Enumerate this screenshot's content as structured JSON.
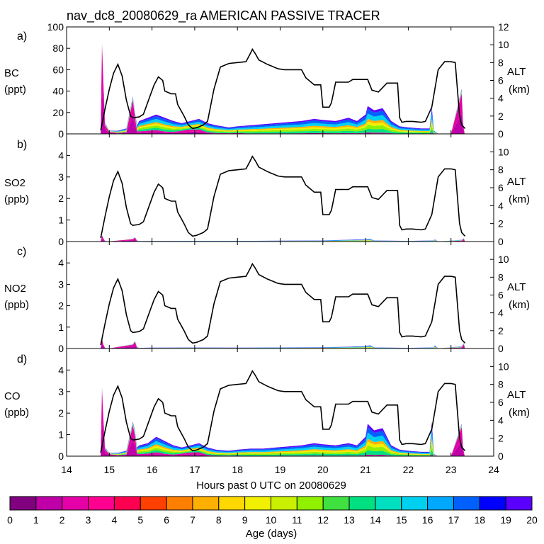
{
  "title": "nav_dc8_20080629_ra AMERICAN PASSIVE TRACER",
  "xlabel": "Hours past 0 UTC on 20080629",
  "xlim": [
    14,
    24
  ],
  "xticks": [
    "14",
    "15",
    "16",
    "17",
    "18",
    "19",
    "20",
    "21",
    "22",
    "23",
    "24"
  ],
  "colorbar": {
    "label": "Age (days)",
    "ticks": [
      "0",
      "1",
      "2",
      "3",
      "4",
      "5",
      "6",
      "7",
      "8",
      "9",
      "10",
      "11",
      "12",
      "13",
      "14",
      "15",
      "16",
      "17",
      "18",
      "19",
      "20"
    ],
    "colors": [
      "#800080",
      "#bf00a8",
      "#e600a8",
      "#ff0090",
      "#ff0050",
      "#ff4000",
      "#ff8000",
      "#ffb000",
      "#ffd800",
      "#f0f000",
      "#c8f000",
      "#90f000",
      "#40e040",
      "#00e080",
      "#00e0c0",
      "#00d0f0",
      "#00a8ff",
      "#0060ff",
      "#0000ff",
      "#5a00ff"
    ]
  },
  "altitude": {
    "label": "ALT",
    "unit": "(km)",
    "ylim": [
      0,
      12
    ],
    "x": [
      14.8,
      14.9,
      15.0,
      15.1,
      15.2,
      15.3,
      15.4,
      15.5,
      15.55,
      15.7,
      15.8,
      15.95,
      16.05,
      16.15,
      16.25,
      16.3,
      16.45,
      16.55,
      16.6,
      16.75,
      16.85,
      16.95,
      17.05,
      17.2,
      17.3,
      17.45,
      17.6,
      17.8,
      18.0,
      18.2,
      18.3,
      18.35,
      18.42,
      18.5,
      18.7,
      18.95,
      19.1,
      19.5,
      19.6,
      19.8,
      19.95,
      20.0,
      20.15,
      20.2,
      20.3,
      20.6,
      20.7,
      21.05,
      21.15,
      21.3,
      21.5,
      21.75,
      21.8,
      21.85,
      21.95,
      22.1,
      22.3,
      22.4,
      22.55,
      22.7,
      22.85,
      23.0,
      23.1,
      23.2,
      23.25,
      23.33
    ],
    "y": [
      0.4,
      2.8,
      5.0,
      6.8,
      7.8,
      6.5,
      3.8,
      2.0,
      1.8,
      1.9,
      2.2,
      4.2,
      5.5,
      6.4,
      6.0,
      4.8,
      4.5,
      4.5,
      3.3,
      2.0,
      1.0,
      0.6,
      0.7,
      1.0,
      1.4,
      5.0,
      7.5,
      7.9,
      8.0,
      8.1,
      9.0,
      9.5,
      9.0,
      8.3,
      7.8,
      7.3,
      7.2,
      7.2,
      6.3,
      5.5,
      5.5,
      3.0,
      3.0,
      3.5,
      5.8,
      5.8,
      6.1,
      6.1,
      4.9,
      4.7,
      5.7,
      5.7,
      1.8,
      1.3,
      1.4,
      1.4,
      1.3,
      1.4,
      3.0,
      7.2,
      8.1,
      8.1,
      8.0,
      2.0,
      1.0,
      0.6
    ]
  },
  "chart_data": [
    {
      "type": "area",
      "panel_label": "a)",
      "species": "BC",
      "unit": "(ppt)",
      "ylim": [
        0,
        100
      ],
      "yticks": [
        "0",
        "20",
        "40",
        "60",
        "80",
        "100"
      ],
      "series_note": "stacked by tracer age (days)",
      "x": [
        14.8,
        14.83,
        14.86,
        14.9,
        15.0,
        15.2,
        15.4,
        15.55,
        15.6,
        15.65,
        15.7,
        15.9,
        16.1,
        16.3,
        16.5,
        16.7,
        16.9,
        17.1,
        17.3,
        17.5,
        17.8,
        18.0,
        18.3,
        18.6,
        18.9,
        19.2,
        19.5,
        19.8,
        20.0,
        20.3,
        20.6,
        20.8,
        21.0,
        21.05,
        21.2,
        21.4,
        21.6,
        21.8,
        22.0,
        22.3,
        22.5,
        22.55,
        22.6,
        22.7,
        23.0,
        23.25,
        23.28,
        23.32
      ],
      "total": [
        5,
        85,
        50,
        10,
        3,
        3,
        5,
        35,
        20,
        8,
        12,
        15,
        18,
        15,
        12,
        10,
        12,
        14,
        10,
        8,
        6,
        7,
        8,
        9,
        10,
        11,
        12,
        14,
        13,
        12,
        15,
        12,
        18,
        26,
        22,
        24,
        12,
        7,
        6,
        5,
        5,
        25,
        3,
        0,
        0,
        42,
        12,
        0
      ],
      "old_fraction": [
        0.95,
        0.98,
        0.95,
        0.8,
        0.6,
        0.3,
        0.3,
        0.9,
        0.8,
        0.3,
        0.2,
        0.2,
        0.2,
        0.15,
        0.15,
        0.3,
        0.35,
        0.3,
        0.15,
        0.1,
        0.1,
        0.1,
        0.05,
        0.05,
        0.05,
        0.05,
        0.05,
        0.05,
        0.05,
        0.05,
        0.05,
        0.05,
        0.05,
        0.05,
        0.05,
        0.05,
        0.05,
        0.05,
        0.05,
        0.05,
        0.05,
        0.05,
        0.05,
        0.05,
        0.05,
        0.9,
        0.8,
        0.5
      ]
    },
    {
      "type": "area",
      "panel_label": "b)",
      "species": "SO2",
      "unit": "(ppb)",
      "ylim": [
        0,
        5
      ],
      "yticks": [
        "0",
        "1",
        "2",
        "3",
        "4"
      ],
      "series_note": "stacked by tracer age (days)",
      "x": [
        14.8,
        14.83,
        14.86,
        14.9,
        15.0,
        15.55,
        15.6,
        15.65,
        15.7,
        16.0,
        17.0,
        18.0,
        19.0,
        20.0,
        20.5,
        21.0,
        21.1,
        21.2,
        22.0,
        22.6,
        22.62,
        22.7,
        23.25,
        23.3,
        23.33
      ],
      "total": [
        0.02,
        0.3,
        0.15,
        0.03,
        0.01,
        0.12,
        0.2,
        0.05,
        0.02,
        0.03,
        0.03,
        0.03,
        0.04,
        0.05,
        0.08,
        0.1,
        0.12,
        0.05,
        0.03,
        0.05,
        0.1,
        0.0,
        0.08,
        0.15,
        0.0
      ],
      "old_fraction": [
        0.9,
        0.9,
        0.9,
        0.8,
        0.5,
        0.9,
        0.9,
        0.5,
        0.3,
        0.2,
        0.1,
        0.05,
        0.05,
        0.05,
        0.05,
        0.05,
        0.05,
        0.05,
        0.05,
        0.05,
        0.05,
        0.05,
        0.5,
        0.8,
        0.5
      ]
    },
    {
      "type": "area",
      "panel_label": "c)",
      "species": "NO2",
      "unit": "(ppb)",
      "ylim": [
        0,
        5
      ],
      "yticks": [
        "0",
        "1",
        "2",
        "3",
        "4"
      ],
      "series_note": "stacked by tracer age (days)",
      "x": [
        14.8,
        14.83,
        14.86,
        14.9,
        15.0,
        15.55,
        15.6,
        15.65,
        15.7,
        16.0,
        17.0,
        18.0,
        19.0,
        20.0,
        20.5,
        21.0,
        21.1,
        21.2,
        22.0,
        22.6,
        22.62,
        22.7,
        23.25,
        23.3,
        23.33
      ],
      "total": [
        0.02,
        0.5,
        0.2,
        0.03,
        0.01,
        0.2,
        0.35,
        0.08,
        0.03,
        0.04,
        0.05,
        0.04,
        0.05,
        0.06,
        0.08,
        0.1,
        0.15,
        0.05,
        0.03,
        0.05,
        0.15,
        0.0,
        0.1,
        0.25,
        0.0
      ],
      "old_fraction": [
        0.9,
        0.9,
        0.9,
        0.8,
        0.5,
        0.9,
        0.9,
        0.5,
        0.3,
        0.2,
        0.1,
        0.05,
        0.05,
        0.05,
        0.05,
        0.05,
        0.05,
        0.05,
        0.05,
        0.05,
        0.05,
        0.05,
        0.5,
        0.8,
        0.5
      ]
    },
    {
      "type": "area",
      "panel_label": "d)",
      "species": "CO",
      "unit": "(ppb)",
      "ylim": [
        0,
        5
      ],
      "yticks": [
        "0",
        "1",
        "2",
        "3",
        "4"
      ],
      "series_note": "stacked by tracer age (days)",
      "x": [
        14.8,
        14.83,
        14.86,
        14.9,
        15.0,
        15.2,
        15.4,
        15.55,
        15.6,
        15.65,
        15.7,
        15.9,
        16.1,
        16.3,
        16.5,
        16.7,
        16.9,
        17.1,
        17.3,
        17.5,
        17.8,
        18.0,
        18.3,
        18.6,
        18.9,
        19.2,
        19.5,
        19.8,
        20.0,
        20.3,
        20.6,
        20.8,
        21.0,
        21.05,
        21.2,
        21.4,
        21.6,
        21.8,
        22.0,
        22.3,
        22.5,
        22.55,
        22.6,
        22.7,
        23.0,
        23.25,
        23.28,
        23.32
      ],
      "total": [
        0.2,
        3.2,
        1.8,
        0.4,
        0.15,
        0.15,
        0.25,
        1.6,
        1.2,
        0.4,
        0.5,
        0.6,
        0.9,
        0.7,
        0.5,
        0.4,
        0.5,
        0.6,
        0.4,
        0.3,
        0.25,
        0.3,
        0.35,
        0.35,
        0.4,
        0.45,
        0.5,
        0.6,
        0.55,
        0.5,
        0.6,
        0.5,
        0.9,
        1.5,
        1.2,
        1.3,
        0.5,
        0.3,
        0.25,
        0.2,
        0.2,
        1.6,
        0.1,
        0.0,
        0.0,
        1.5,
        0.5,
        0.0
      ],
      "old_fraction": [
        0.95,
        0.98,
        0.95,
        0.8,
        0.6,
        0.3,
        0.3,
        0.9,
        0.8,
        0.3,
        0.2,
        0.2,
        0.2,
        0.15,
        0.15,
        0.3,
        0.35,
        0.3,
        0.15,
        0.1,
        0.1,
        0.1,
        0.05,
        0.05,
        0.05,
        0.05,
        0.05,
        0.05,
        0.05,
        0.05,
        0.05,
        0.05,
        0.05,
        0.05,
        0.05,
        0.05,
        0.05,
        0.05,
        0.05,
        0.05,
        0.05,
        0.05,
        0.05,
        0.05,
        0.05,
        0.9,
        0.8,
        0.5
      ]
    }
  ]
}
